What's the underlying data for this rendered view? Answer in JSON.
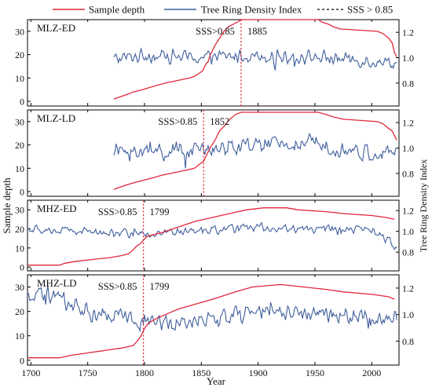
{
  "legend": {
    "depth_label": "Sample depth",
    "index_label": "Tree Ring Density Index",
    "sss_label": "SSS > 0.85"
  },
  "axes": {
    "x_title": "Year",
    "y_left_title": "Sample depth",
    "y_right_title": "Tree Ring Density Index"
  },
  "colors": {
    "depth": "#e0283a",
    "index": "#3f5e9c",
    "sss": "#e0283a"
  },
  "chart_data": [
    {
      "type": "line",
      "title": "MLZ-ED",
      "sss_year": 1885,
      "sss_label": "SSS>0.85",
      "sss_year_label": "1885",
      "xlim": [
        1697,
        2024
      ],
      "x_ticks": [
        1700,
        1750,
        1800,
        1850,
        1900,
        1950,
        2000
      ],
      "ylim_left": [
        -2,
        35
      ],
      "y_left_ticks": [
        0,
        10,
        20,
        30
      ],
      "ylim_right": [
        0.62,
        1.3
      ],
      "y_right_ticks": [
        0.8,
        1.0,
        1.2
      ],
      "depth_series": {
        "name": "Sample depth",
        "points": [
          [
            1773,
            1
          ],
          [
            1779,
            2
          ],
          [
            1785,
            3
          ],
          [
            1790,
            4
          ],
          [
            1798,
            5
          ],
          [
            1805,
            6
          ],
          [
            1812,
            7
          ],
          [
            1820,
            8
          ],
          [
            1830,
            9
          ],
          [
            1840,
            10
          ],
          [
            1845,
            11
          ],
          [
            1848,
            12
          ],
          [
            1851,
            13
          ],
          [
            1854,
            16
          ],
          [
            1856,
            17
          ],
          [
            1858,
            20
          ],
          [
            1862,
            24
          ],
          [
            1866,
            27
          ],
          [
            1870,
            30
          ],
          [
            1874,
            32
          ],
          [
            1878,
            33
          ],
          [
            1882,
            34
          ],
          [
            1885,
            35
          ],
          [
            1953,
            35
          ],
          [
            1956,
            34
          ],
          [
            1962,
            33
          ],
          [
            1966,
            32
          ],
          [
            1972,
            31
          ],
          [
            2005,
            30
          ],
          [
            2010,
            29
          ],
          [
            2015,
            27
          ],
          [
            2018,
            25
          ],
          [
            2020,
            21
          ],
          [
            2022,
            19
          ]
        ]
      },
      "index_series": {
        "name": "Tree Ring Density Index",
        "start_year": 1773,
        "end_year": 2022,
        "mean": 1.0,
        "amplitude": 0.065,
        "trend_points": [
          [
            1773,
            0.99
          ],
          [
            1800,
            1.02
          ],
          [
            1850,
            1.0
          ],
          [
            1900,
            1.02
          ],
          [
            1960,
            1.0
          ],
          [
            2022,
            0.96
          ]
        ]
      }
    },
    {
      "type": "line",
      "title": "MLZ-LD",
      "sss_year": 1852,
      "sss_label": "SSS>0.85",
      "sss_year_label": "1852",
      "xlim": [
        1697,
        2024
      ],
      "x_ticks": [
        1700,
        1750,
        1800,
        1850,
        1900,
        1950,
        2000
      ],
      "ylim_left": [
        -2,
        35
      ],
      "y_left_ticks": [
        0,
        10,
        20,
        30
      ],
      "ylim_right": [
        0.62,
        1.3
      ],
      "y_right_ticks": [
        0.8,
        1.0,
        1.2
      ],
      "depth_series": {
        "name": "Sample depth",
        "points": [
          [
            1773,
            1
          ],
          [
            1779,
            2
          ],
          [
            1785,
            3
          ],
          [
            1792,
            4
          ],
          [
            1800,
            5
          ],
          [
            1808,
            6
          ],
          [
            1815,
            7
          ],
          [
            1825,
            8
          ],
          [
            1835,
            9
          ],
          [
            1844,
            10
          ],
          [
            1849,
            12
          ],
          [
            1852,
            13
          ],
          [
            1855,
            16
          ],
          [
            1858,
            19
          ],
          [
            1862,
            22
          ],
          [
            1866,
            26
          ],
          [
            1870,
            28
          ],
          [
            1875,
            31
          ],
          [
            1880,
            33
          ],
          [
            1885,
            34
          ],
          [
            1953,
            34
          ],
          [
            1960,
            33
          ],
          [
            1966,
            32
          ],
          [
            1975,
            31
          ],
          [
            2005,
            30
          ],
          [
            2010,
            29
          ],
          [
            2015,
            27
          ],
          [
            2018,
            26
          ],
          [
            2020,
            24
          ],
          [
            2022,
            22
          ]
        ]
      },
      "index_series": {
        "name": "Tree Ring Density Index",
        "start_year": 1773,
        "end_year": 2022,
        "mean": 1.0,
        "amplitude": 0.08,
        "trend_points": [
          [
            1773,
            0.98
          ],
          [
            1800,
            0.97
          ],
          [
            1850,
            0.98
          ],
          [
            1900,
            1.02
          ],
          [
            1950,
            1.04
          ],
          [
            2000,
            0.95
          ],
          [
            2022,
            0.96
          ]
        ]
      }
    },
    {
      "type": "line",
      "title": "MHZ-ED",
      "sss_year": 1799,
      "sss_label": "SSS>0.85",
      "sss_year_label": "1799",
      "xlim": [
        1697,
        2024
      ],
      "x_ticks": [
        1700,
        1750,
        1800,
        1850,
        1900,
        1950,
        2000
      ],
      "ylim_left": [
        -2,
        35
      ],
      "y_left_ticks": [
        0,
        10,
        20,
        30
      ],
      "ylim_right": [
        0.62,
        1.3
      ],
      "y_right_ticks": [
        0.8,
        1.0,
        1.2
      ],
      "depth_series": {
        "name": "Sample depth",
        "points": [
          [
            1697,
            1
          ],
          [
            1725,
            1
          ],
          [
            1730,
            2
          ],
          [
            1740,
            3
          ],
          [
            1755,
            4
          ],
          [
            1770,
            5
          ],
          [
            1780,
            6
          ],
          [
            1786,
            7
          ],
          [
            1790,
            9
          ],
          [
            1793,
            11
          ],
          [
            1796,
            12
          ],
          [
            1799,
            14
          ],
          [
            1802,
            16
          ],
          [
            1808,
            17
          ],
          [
            1815,
            18
          ],
          [
            1825,
            20
          ],
          [
            1835,
            22
          ],
          [
            1845,
            24
          ],
          [
            1860,
            26
          ],
          [
            1875,
            28
          ],
          [
            1890,
            30
          ],
          [
            1905,
            31
          ],
          [
            1925,
            31
          ],
          [
            1935,
            30
          ],
          [
            1960,
            29
          ],
          [
            1975,
            28
          ],
          [
            2000,
            27
          ],
          [
            2012,
            26
          ],
          [
            2020,
            25
          ]
        ]
      },
      "index_series": {
        "name": "Tree Ring Density Index",
        "start_year": 1697,
        "end_year": 2022,
        "mean": 1.0,
        "amplitude": 0.05,
        "trend_points": [
          [
            1697,
            1.02
          ],
          [
            1750,
            1.0
          ],
          [
            1800,
            0.98
          ],
          [
            1850,
            1.0
          ],
          [
            1900,
            1.04
          ],
          [
            1950,
            1.02
          ],
          [
            2000,
            1.02
          ],
          [
            2022,
            0.85
          ]
        ]
      }
    },
    {
      "type": "line",
      "title": "MHZ-LD",
      "sss_year": 1799,
      "sss_label": "SSS>0.85",
      "sss_year_label": "1799",
      "xlim": [
        1697,
        2024
      ],
      "x_ticks": [
        1700,
        1750,
        1800,
        1850,
        1900,
        1950,
        2000
      ],
      "ylim_left": [
        -2,
        35
      ],
      "y_left_ticks": [
        0,
        10,
        20,
        30
      ],
      "ylim_right": [
        0.62,
        1.3
      ],
      "y_right_ticks": [
        0.8,
        1.0,
        1.2
      ],
      "depth_series": {
        "name": "Sample depth",
        "points": [
          [
            1697,
            1
          ],
          [
            1725,
            1
          ],
          [
            1735,
            2
          ],
          [
            1750,
            3
          ],
          [
            1765,
            4
          ],
          [
            1780,
            5
          ],
          [
            1790,
            6
          ],
          [
            1794,
            8
          ],
          [
            1797,
            10
          ],
          [
            1800,
            13
          ],
          [
            1803,
            15
          ],
          [
            1810,
            17
          ],
          [
            1820,
            19
          ],
          [
            1830,
            21
          ],
          [
            1845,
            23
          ],
          [
            1860,
            25
          ],
          [
            1880,
            28
          ],
          [
            1895,
            30
          ],
          [
            1920,
            31
          ],
          [
            1940,
            30
          ],
          [
            1960,
            29
          ],
          [
            1975,
            28
          ],
          [
            2000,
            27
          ],
          [
            2015,
            26
          ],
          [
            2020,
            25
          ]
        ]
      },
      "index_series": {
        "name": "Tree Ring Density Index",
        "start_year": 1697,
        "end_year": 2022,
        "mean": 1.0,
        "amplitude": 0.08,
        "trend_points": [
          [
            1697,
            1.12
          ],
          [
            1720,
            1.14
          ],
          [
            1750,
            1.02
          ],
          [
            1800,
            0.94
          ],
          [
            1850,
            0.96
          ],
          [
            1900,
            1.02
          ],
          [
            1950,
            1.02
          ],
          [
            2000,
            0.96
          ],
          [
            2022,
            1.0
          ]
        ]
      }
    }
  ]
}
